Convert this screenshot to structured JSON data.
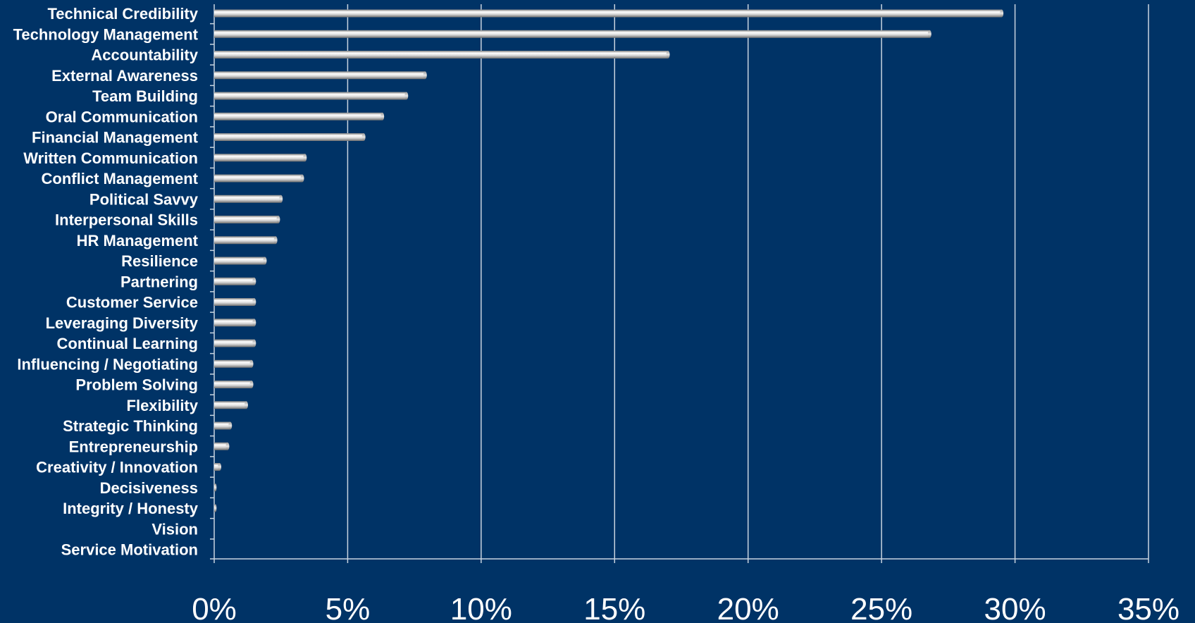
{
  "chart_data": {
    "type": "bar",
    "orientation": "horizontal",
    "title": "",
    "xlabel": "",
    "ylabel": "",
    "xlim": [
      0,
      35
    ],
    "grid": true,
    "legend": "none",
    "x_ticks": [
      0,
      5,
      10,
      15,
      20,
      25,
      30,
      35
    ],
    "x_tick_labels": [
      "0%",
      "5%",
      "10%",
      "15%",
      "20%",
      "25%",
      "30%",
      "35%"
    ],
    "categories": [
      "Technical Credibility",
      "Technology Management",
      "Accountability",
      "External Awareness",
      "Team Building",
      "Oral Communication",
      "Financial Management",
      "Written Communication",
      "Conflict Management",
      "Political Savvy",
      "Interpersonal Skills",
      "HR Management",
      "Resilience",
      "Partnering",
      "Customer Service",
      "Leveraging Diversity",
      "Continual Learning",
      "Influencing / Negotiating",
      "Problem Solving",
      "Flexibility",
      "Strategic Thinking",
      "Entrepreneurship",
      "Creativity / Innovation",
      "Decisiveness",
      "Integrity / Honesty",
      "Vision",
      "Service Motivation"
    ],
    "values": [
      29.5,
      26.8,
      17.0,
      7.9,
      7.2,
      6.3,
      5.6,
      3.4,
      3.3,
      2.5,
      2.4,
      2.3,
      1.9,
      1.5,
      1.5,
      1.5,
      1.5,
      1.4,
      1.4,
      1.2,
      0.6,
      0.5,
      0.2,
      0.05,
      0.05,
      0,
      0
    ],
    "colors": {
      "background": "#003366",
      "bar_light": "#ffffff",
      "bar_mid": "#d9d9d9",
      "bar_dark": "#7f7f7f",
      "grid": "#c9d4e0",
      "text": "#ffffff"
    }
  }
}
